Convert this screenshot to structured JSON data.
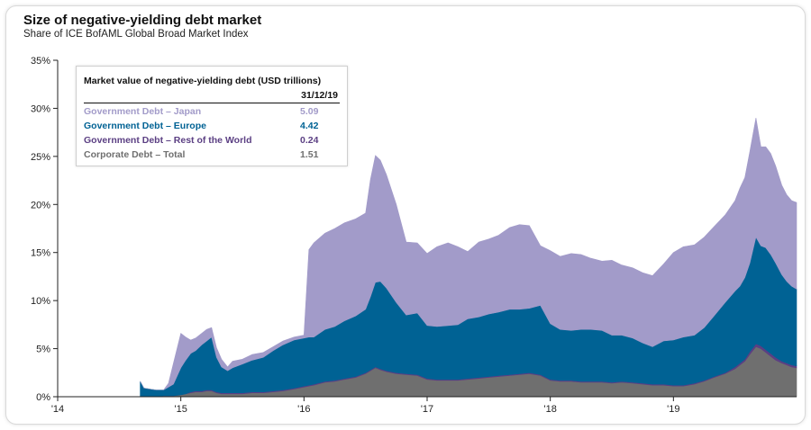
{
  "title": "Size of negative-yielding debt market",
  "subtitle": "Share of ICE BofAML Global Broad Market Index",
  "legend_box": {
    "title": "Market value of negative-yielding debt (USD trillions)",
    "date": "31/12/19",
    "rows": [
      {
        "label": "Government Debt – Japan",
        "value": "5.09",
        "color": "#a29bc9"
      },
      {
        "label": "Government Debt – Europe",
        "value": "4.42",
        "color": "#006294"
      },
      {
        "label": "Government Debt – Rest of the World",
        "value": "0.24",
        "color": "#5b3f83"
      },
      {
        "label": "Corporate Debt – Total",
        "value": "1.51",
        "color": "#6f6f6f"
      }
    ]
  },
  "chart_data": {
    "type": "area",
    "stacked": true,
    "x_labels": [
      "'14",
      "'15",
      "'16",
      "'17",
      "'18",
      "'19"
    ],
    "y_tick_labels": [
      "0%",
      "5%",
      "10%",
      "15%",
      "20%",
      "25%",
      "30%",
      "35%"
    ],
    "ylim": [
      0,
      35
    ],
    "xlim": [
      2014.0,
      2020.0
    ],
    "x": [
      2014.67,
      2014.7,
      2014.75,
      2014.8,
      2014.86,
      2014.9,
      2014.94,
      2015.0,
      2015.04,
      2015.08,
      2015.12,
      2015.17,
      2015.21,
      2015.25,
      2015.29,
      2015.33,
      2015.38,
      2015.42,
      2015.5,
      2015.58,
      2015.67,
      2015.75,
      2015.83,
      2015.92,
      2016.0,
      2016.04,
      2016.08,
      2016.17,
      2016.25,
      2016.33,
      2016.42,
      2016.5,
      2016.54,
      2016.58,
      2016.62,
      2016.67,
      2016.75,
      2016.83,
      2016.92,
      2017.0,
      2017.08,
      2017.17,
      2017.25,
      2017.33,
      2017.42,
      2017.5,
      2017.58,
      2017.67,
      2017.75,
      2017.83,
      2017.92,
      2018.0,
      2018.08,
      2018.17,
      2018.25,
      2018.33,
      2018.42,
      2018.5,
      2018.58,
      2018.67,
      2018.75,
      2018.83,
      2018.92,
      2019.0,
      2019.08,
      2019.17,
      2019.25,
      2019.33,
      2019.42,
      2019.5,
      2019.54,
      2019.58,
      2019.62,
      2019.67,
      2019.71,
      2019.75,
      2019.79,
      2019.83,
      2019.88,
      2019.92,
      2019.96,
      2020.0
    ],
    "series": [
      {
        "name": "Corporate Debt – Total",
        "color": "#6f6f6f",
        "values": [
          0,
          0,
          0,
          0,
          0.1,
          0.1,
          0.1,
          0.2,
          0.3,
          0.4,
          0.5,
          0.5,
          0.6,
          0.6,
          0.4,
          0.3,
          0.3,
          0.3,
          0.3,
          0.4,
          0.4,
          0.5,
          0.6,
          0.8,
          1.0,
          1.1,
          1.2,
          1.5,
          1.6,
          1.8,
          2.0,
          2.4,
          2.7,
          3.0,
          2.8,
          2.6,
          2.4,
          2.3,
          2.2,
          1.8,
          1.7,
          1.7,
          1.7,
          1.8,
          1.9,
          2.0,
          2.1,
          2.2,
          2.3,
          2.4,
          2.2,
          1.7,
          1.6,
          1.6,
          1.5,
          1.5,
          1.5,
          1.4,
          1.5,
          1.4,
          1.3,
          1.2,
          1.2,
          1.1,
          1.1,
          1.3,
          1.6,
          2.0,
          2.4,
          2.9,
          3.3,
          3.7,
          4.4,
          5.2,
          5.0,
          4.6,
          4.2,
          3.8,
          3.5,
          3.3,
          3.1,
          3.0
        ]
      },
      {
        "name": "Government Debt – Rest of the World",
        "color": "#5b3f83",
        "values": [
          0,
          0,
          0,
          0,
          0,
          0,
          0,
          0,
          0,
          0.1,
          0.1,
          0.1,
          0.1,
          0.1,
          0.1,
          0.1,
          0.1,
          0.1,
          0.1,
          0.1,
          0.1,
          0.1,
          0.1,
          0.1,
          0.1,
          0.1,
          0.1,
          0.1,
          0.1,
          0.1,
          0.1,
          0.1,
          0.1,
          0.1,
          0.1,
          0.1,
          0.1,
          0.1,
          0.1,
          0.1,
          0.1,
          0.1,
          0.1,
          0.1,
          0.1,
          0.1,
          0.1,
          0.1,
          0.1,
          0.1,
          0.1,
          0.1,
          0.1,
          0.1,
          0.1,
          0.1,
          0.1,
          0.1,
          0.1,
          0.1,
          0.1,
          0.1,
          0.1,
          0.1,
          0.1,
          0.1,
          0.1,
          0.1,
          0.1,
          0.2,
          0.2,
          0.2,
          0.3,
          0.3,
          0.3,
          0.3,
          0.3,
          0.3,
          0.2,
          0.2,
          0.2,
          0.2
        ]
      },
      {
        "name": "Government Debt – Europe",
        "color": "#006294",
        "values": [
          1.6,
          0.9,
          0.8,
          0.7,
          0.6,
          0.9,
          1.2,
          2.8,
          3.5,
          4.0,
          4.2,
          4.8,
          5.1,
          5.5,
          3.6,
          2.7,
          2.3,
          2.6,
          3.0,
          3.3,
          3.6,
          4.2,
          4.7,
          5.0,
          5.0,
          5.0,
          4.9,
          5.4,
          5.6,
          6.0,
          6.3,
          6.6,
          7.6,
          8.8,
          9.1,
          8.6,
          7.3,
          6.1,
          6.4,
          5.5,
          5.5,
          5.6,
          5.7,
          6.2,
          6.3,
          6.5,
          6.6,
          6.8,
          6.7,
          6.7,
          7.2,
          5.8,
          5.3,
          5.2,
          5.4,
          5.4,
          5.3,
          4.9,
          4.8,
          4.6,
          4.2,
          3.9,
          4.5,
          4.7,
          5.0,
          5.0,
          5.5,
          6.3,
          7.3,
          7.9,
          8.0,
          8.5,
          9.2,
          11.1,
          10.4,
          10.6,
          10.3,
          9.8,
          9.0,
          8.5,
          8.2,
          8.0
        ]
      },
      {
        "name": "Government Debt – Japan",
        "color": "#a29bc9",
        "values": [
          0,
          0,
          0,
          0,
          0,
          0.4,
          2.2,
          3.6,
          2.4,
          1.4,
          1.3,
          1.2,
          1.2,
          1.0,
          1.0,
          0.8,
          0.4,
          0.7,
          0.5,
          0.6,
          0.5,
          0.4,
          0.4,
          0.3,
          0.3,
          9.1,
          9.8,
          10.0,
          10.2,
          10.2,
          10.1,
          10.0,
          12.2,
          13.2,
          12.6,
          11.8,
          10.2,
          7.6,
          7.3,
          7.5,
          8.3,
          8.6,
          8.1,
          7.0,
          7.8,
          7.8,
          8.0,
          8.5,
          8.8,
          8.6,
          6.2,
          7.6,
          7.6,
          8.0,
          7.8,
          7.4,
          7.2,
          7.8,
          7.3,
          7.3,
          7.3,
          7.4,
          8.0,
          9.1,
          9.4,
          9.4,
          9.4,
          9.3,
          9.1,
          9.4,
          10.2,
          10.4,
          11.6,
          12.4,
          10.3,
          10.5,
          10.5,
          10.1,
          9.3,
          9.0,
          8.9,
          9.0
        ]
      }
    ]
  }
}
